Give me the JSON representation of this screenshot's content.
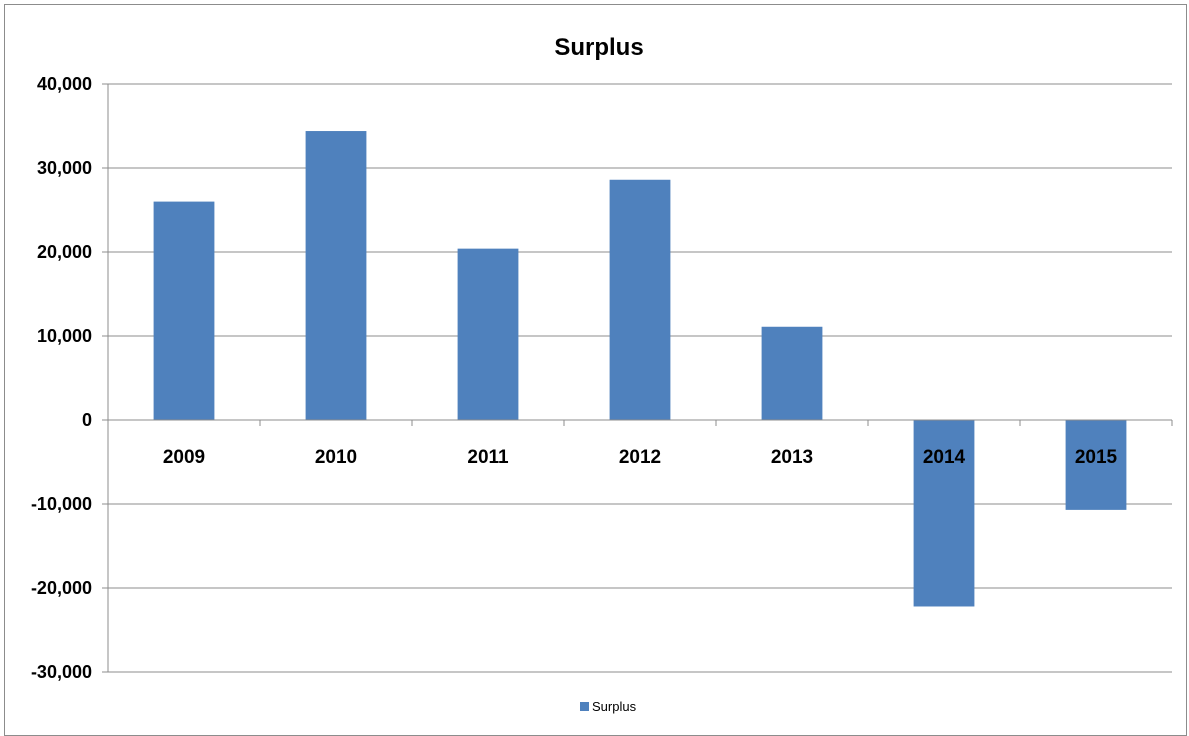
{
  "chart_data": {
    "type": "bar",
    "title": "Surplus",
    "xlabel": "",
    "ylabel": "",
    "categories": [
      "2009",
      "2010",
      "2011",
      "2012",
      "2013",
      "2014",
      "2015"
    ],
    "series": [
      {
        "name": "Surplus",
        "values": [
          26000,
          34400,
          20400,
          28600,
          11100,
          -22200,
          -10700
        ]
      }
    ],
    "ylim": [
      -30000,
      40000
    ],
    "yticks": [
      -30000,
      -20000,
      -10000,
      0,
      10000,
      20000,
      30000,
      40000
    ],
    "ytick_labels": [
      "-30,000",
      "-20,000",
      "-10,000",
      "0",
      "10,000",
      "20,000",
      "30,000",
      "40,000"
    ],
    "grid": true,
    "legend_position": "bottom",
    "colors": {
      "bar": "#4f81bd",
      "grid": "#8c8c8c",
      "axis": "#8c8c8c"
    }
  }
}
